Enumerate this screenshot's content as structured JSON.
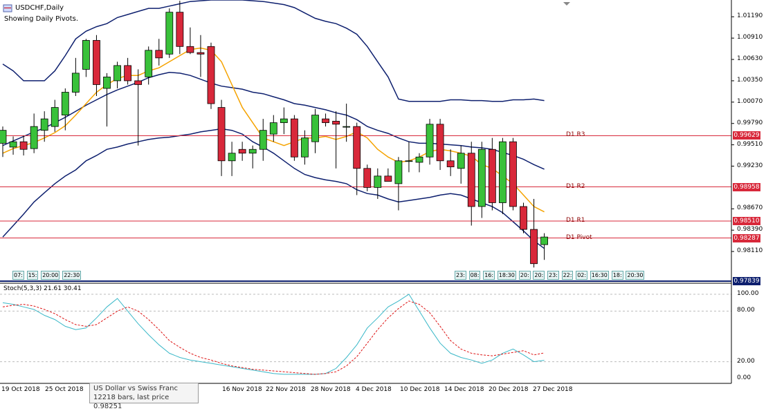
{
  "header": {
    "symbol": "USDCHF,Daily",
    "subtitle": "Showing Daily Pivots."
  },
  "pivots": [
    {
      "name": "D1 R3",
      "value": "0.99629"
    },
    {
      "name": "D1 R2",
      "value": "0.98958"
    },
    {
      "name": "D1 R1",
      "value": "0.98510"
    },
    {
      "name": "D1 Pivot",
      "value": "0.98287"
    }
  ],
  "current_price_tag": "0.97839",
  "price_axis": [
    "1.01190",
    "1.00910",
    "1.00630",
    "1.00350",
    "1.00070",
    "0.99790",
    "0.99510",
    "0.99230",
    "0.98670",
    "0.98390",
    "0.98110"
  ],
  "stoch": {
    "label": "Stoch(5,3,3) 21.61 30.41",
    "axis": [
      "100.00",
      "80.00",
      "20.00",
      "0.00"
    ]
  },
  "date_axis": [
    "19 Oct 2018",
    "25 Oct 2018",
    "16 Nov 2018",
    "22 Nov 2018",
    "28 Nov 2018",
    "4 Dec 2018",
    "10 Dec 2018",
    "14 Dec 2018",
    "20 Dec 2018",
    "27 Dec 2018"
  ],
  "time_labels_left": [
    "07:",
    "15:",
    "20:00",
    "22:30"
  ],
  "time_labels_right": [
    "23:",
    "08:",
    "16:",
    "18:30",
    "20:",
    "20:",
    "23:",
    "22:",
    "02:",
    "16:30",
    "18:",
    "20:30"
  ],
  "tooltip": {
    "line1": "US Dollar vs Swiss Franc",
    "line2": "12218 bars, last price 0.98251"
  },
  "colors": {
    "bull": "#39c13a",
    "bear": "#d8283a",
    "band": "#0d1f6e",
    "ma": "#f5a300",
    "pivot": "#d8283a",
    "stoch_main": "#3ab8c8",
    "stoch_signal": "#dd1111"
  },
  "chart_data": {
    "type": "candlestick",
    "symbol": "USDCHF",
    "timeframe": "Daily",
    "candles": [
      {
        "o": 0.9953,
        "h": 0.9975,
        "l": 0.9935,
        "c": 0.997
      },
      {
        "o": 0.9948,
        "h": 0.9962,
        "l": 0.9938,
        "c": 0.9955
      },
      {
        "o": 0.9955,
        "h": 0.9963,
        "l": 0.9937,
        "c": 0.9945
      },
      {
        "o": 0.9946,
        "h": 0.9992,
        "l": 0.994,
        "c": 0.9975
      },
      {
        "o": 0.997,
        "h": 0.9995,
        "l": 0.9955,
        "c": 0.9985
      },
      {
        "o": 0.9975,
        "h": 1.001,
        "l": 0.9968,
        "c": 1.0
      },
      {
        "o": 0.999,
        "h": 1.0025,
        "l": 0.997,
        "c": 1.002
      },
      {
        "o": 1.002,
        "h": 1.0065,
        "l": 1.0015,
        "c": 1.0045
      },
      {
        "o": 1.005,
        "h": 1.009,
        "l": 1.004,
        "c": 1.0088
      },
      {
        "o": 1.0088,
        "h": 1.0095,
        "l": 1.0015,
        "c": 1.003
      },
      {
        "o": 1.0025,
        "h": 1.0045,
        "l": 0.9975,
        "c": 1.004
      },
      {
        "o": 1.0035,
        "h": 1.006,
        "l": 1.0025,
        "c": 1.0055
      },
      {
        "o": 1.0055,
        "h": 1.0065,
        "l": 1.003,
        "c": 1.0035
      },
      {
        "o": 1.0035,
        "h": 1.005,
        "l": 0.995,
        "c": 1.003
      },
      {
        "o": 1.004,
        "h": 1.008,
        "l": 1.003,
        "c": 1.0075
      },
      {
        "o": 1.0075,
        "h": 1.009,
        "l": 1.0055,
        "c": 1.0065
      },
      {
        "o": 1.007,
        "h": 1.013,
        "l": 1.0065,
        "c": 1.0125
      },
      {
        "o": 1.0125,
        "h": 1.014,
        "l": 1.007,
        "c": 1.008
      },
      {
        "o": 1.008,
        "h": 1.0105,
        "l": 1.007,
        "c": 1.0072
      },
      {
        "o": 1.0072,
        "h": 1.0095,
        "l": 1.004,
        "c": 1.007
      },
      {
        "o": 1.008,
        "h": 1.0085,
        "l": 0.9998,
        "c": 1.0005
      },
      {
        "o": 1.0,
        "h": 1.001,
        "l": 0.991,
        "c": 0.993
      },
      {
        "o": 0.993,
        "h": 0.9955,
        "l": 0.991,
        "c": 0.994
      },
      {
        "o": 0.9945,
        "h": 0.9955,
        "l": 0.993,
        "c": 0.994
      },
      {
        "o": 0.994,
        "h": 0.995,
        "l": 0.992,
        "c": 0.9945
      },
      {
        "o": 0.9945,
        "h": 0.9985,
        "l": 0.993,
        "c": 0.997
      },
      {
        "o": 0.9965,
        "h": 0.999,
        "l": 0.9955,
        "c": 0.998
      },
      {
        "o": 0.998,
        "h": 1.0,
        "l": 0.9965,
        "c": 0.9985
      },
      {
        "o": 0.9985,
        "h": 0.999,
        "l": 0.993,
        "c": 0.9935
      },
      {
        "o": 0.9935,
        "h": 0.997,
        "l": 0.9925,
        "c": 0.996
      },
      {
        "o": 0.9955,
        "h": 0.9998,
        "l": 0.994,
        "c": 0.999
      },
      {
        "o": 0.9985,
        "h": 0.9992,
        "l": 0.9975,
        "c": 0.998
      },
      {
        "o": 0.9982,
        "h": 0.9995,
        "l": 0.992,
        "c": 0.9978
      },
      {
        "o": 0.9975,
        "h": 1.0005,
        "l": 0.9955,
        "c": 0.9975
      },
      {
        "o": 0.9975,
        "h": 0.998,
        "l": 0.9885,
        "c": 0.992
      },
      {
        "o": 0.992,
        "h": 0.9925,
        "l": 0.989,
        "c": 0.9895
      },
      {
        "o": 0.9895,
        "h": 0.992,
        "l": 0.988,
        "c": 0.991
      },
      {
        "o": 0.991,
        "h": 0.992,
        "l": 0.9905,
        "c": 0.9903
      },
      {
        "o": 0.99,
        "h": 0.9935,
        "l": 0.9865,
        "c": 0.993
      },
      {
        "o": 0.993,
        "h": 0.9955,
        "l": 0.9915,
        "c": 0.993
      },
      {
        "o": 0.9928,
        "h": 0.994,
        "l": 0.9915,
        "c": 0.9935
      },
      {
        "o": 0.9935,
        "h": 0.9985,
        "l": 0.9925,
        "c": 0.9978
      },
      {
        "o": 0.9978,
        "h": 0.9985,
        "l": 0.9918,
        "c": 0.993
      },
      {
        "o": 0.993,
        "h": 0.9945,
        "l": 0.991,
        "c": 0.9922
      },
      {
        "o": 0.992,
        "h": 0.995,
        "l": 0.99,
        "c": 0.994
      },
      {
        "o": 0.994,
        "h": 0.9955,
        "l": 0.9845,
        "c": 0.987
      },
      {
        "o": 0.987,
        "h": 0.9955,
        "l": 0.9855,
        "c": 0.9945
      },
      {
        "o": 0.9945,
        "h": 0.996,
        "l": 0.9865,
        "c": 0.9875
      },
      {
        "o": 0.9875,
        "h": 0.996,
        "l": 0.986,
        "c": 0.9955
      },
      {
        "o": 0.9955,
        "h": 0.996,
        "l": 0.9865,
        "c": 0.987
      },
      {
        "o": 0.987,
        "h": 0.9875,
        "l": 0.9835,
        "c": 0.984
      },
      {
        "o": 0.984,
        "h": 0.988,
        "l": 0.979,
        "c": 0.9795
      },
      {
        "o": 0.982,
        "h": 0.9835,
        "l": 0.98,
        "c": 0.983
      }
    ],
    "bollinger_upper": [
      1.0057,
      1.0048,
      1.0035,
      1.0035,
      1.0035,
      1.0048,
      1.0068,
      1.009,
      1.01,
      1.0106,
      1.011,
      1.0118,
      1.0122,
      1.0126,
      1.013,
      1.013,
      1.0133,
      1.0136,
      1.0139,
      1.014,
      1.0141,
      1.0141,
      1.0141,
      1.0141,
      1.014,
      1.0139,
      1.0137,
      1.0135,
      1.0131,
      1.0124,
      1.0117,
      1.0113,
      1.011,
      1.0104,
      1.0096,
      1.008,
      1.006,
      1.004,
      1.0011,
      1.0008,
      1.0008,
      1.0008,
      1.0008,
      1.001,
      1.001,
      1.0009,
      1.0009,
      1.0008,
      1.0008,
      1.001,
      1.001,
      1.0011,
      1.0009
    ],
    "bollinger_middle": [
      0.995,
      0.9956,
      0.9962,
      0.9968,
      0.9973,
      0.998,
      0.9987,
      0.9995,
      1.0003,
      1.001,
      1.0017,
      1.0023,
      1.0028,
      1.0033,
      1.0039,
      1.0043,
      1.0046,
      1.0045,
      1.0042,
      1.0037,
      1.0032,
      1.0028,
      1.0026,
      1.0024,
      1.002,
      1.0018,
      1.0014,
      1.001,
      1.0005,
      1.0003,
      1.0,
      0.9997,
      0.9993,
      0.999,
      0.9984,
      0.9975,
      0.997,
      0.9966,
      0.996,
      0.9955,
      0.9953,
      0.9953,
      0.9952,
      0.9951,
      0.995,
      0.9948,
      0.9947,
      0.9945,
      0.9941,
      0.9937,
      0.9932,
      0.9925,
      0.9919
    ],
    "bollinger_lower": [
      0.983,
      0.9845,
      0.986,
      0.9876,
      0.9888,
      0.99,
      0.991,
      0.9918,
      0.993,
      0.9937,
      0.9945,
      0.9948,
      0.9952,
      0.9955,
      0.9958,
      0.996,
      0.9961,
      0.9963,
      0.9965,
      0.9968,
      0.997,
      0.9972,
      0.997,
      0.9965,
      0.9955,
      0.9948,
      0.994,
      0.993,
      0.992,
      0.9912,
      0.9908,
      0.9905,
      0.9903,
      0.99,
      0.9892,
      0.9887,
      0.9885,
      0.988,
      0.9876,
      0.9878,
      0.988,
      0.9882,
      0.9885,
      0.9887,
      0.9885,
      0.988,
      0.9875,
      0.987,
      0.9862,
      0.985,
      0.9838,
      0.9825,
      0.9815
    ],
    "ma": [
      0.994,
      0.9946,
      0.995,
      0.9954,
      0.996,
      0.9967,
      0.9976,
      0.999,
      1.0005,
      1.002,
      1.003,
      1.0038,
      1.0042,
      1.0042,
      1.0048,
      1.0052,
      1.006,
      1.0068,
      1.0076,
      1.0078,
      1.0075,
      1.006,
      1.003,
      1.0,
      0.998,
      0.996,
      0.9955,
      0.995,
      0.9955,
      0.996,
      0.996,
      0.9962,
      0.9958,
      0.9962,
      0.9968,
      0.996,
      0.9945,
      0.9935,
      0.9928,
      0.993,
      0.9935,
      0.9942,
      0.9945,
      0.9943,
      0.994,
      0.9936,
      0.9925,
      0.992,
      0.991,
      0.99,
      0.9885,
      0.987,
      0.9863
    ],
    "pivot_levels": {
      "R3": 0.99629,
      "R2": 0.98958,
      "R1": 0.9851,
      "Pivot": 0.98287
    },
    "price_range": [
      0.9773,
      1.0141
    ],
    "stoch_main": [
      90,
      88,
      85,
      82,
      75,
      70,
      62,
      58,
      60,
      72,
      85,
      95,
      80,
      65,
      52,
      40,
      30,
      25,
      22,
      20,
      18,
      16,
      14,
      12,
      10,
      8,
      6,
      5,
      5,
      5,
      5,
      6,
      12,
      25,
      40,
      60,
      72,
      85,
      92,
      100,
      80,
      60,
      42,
      30,
      25,
      22,
      18,
      22,
      30,
      35,
      28,
      20,
      21.61
    ],
    "stoch_signal": [
      85,
      87,
      88,
      86,
      82,
      77,
      70,
      64,
      62,
      64,
      72,
      80,
      85,
      80,
      70,
      58,
      45,
      37,
      30,
      25,
      22,
      18,
      15,
      13,
      11,
      10,
      9,
      8,
      7,
      6,
      5,
      6,
      8,
      15,
      26,
      42,
      58,
      72,
      83,
      92,
      88,
      78,
      62,
      45,
      35,
      30,
      28,
      27,
      29,
      31,
      33,
      28,
      30.41
    ]
  }
}
